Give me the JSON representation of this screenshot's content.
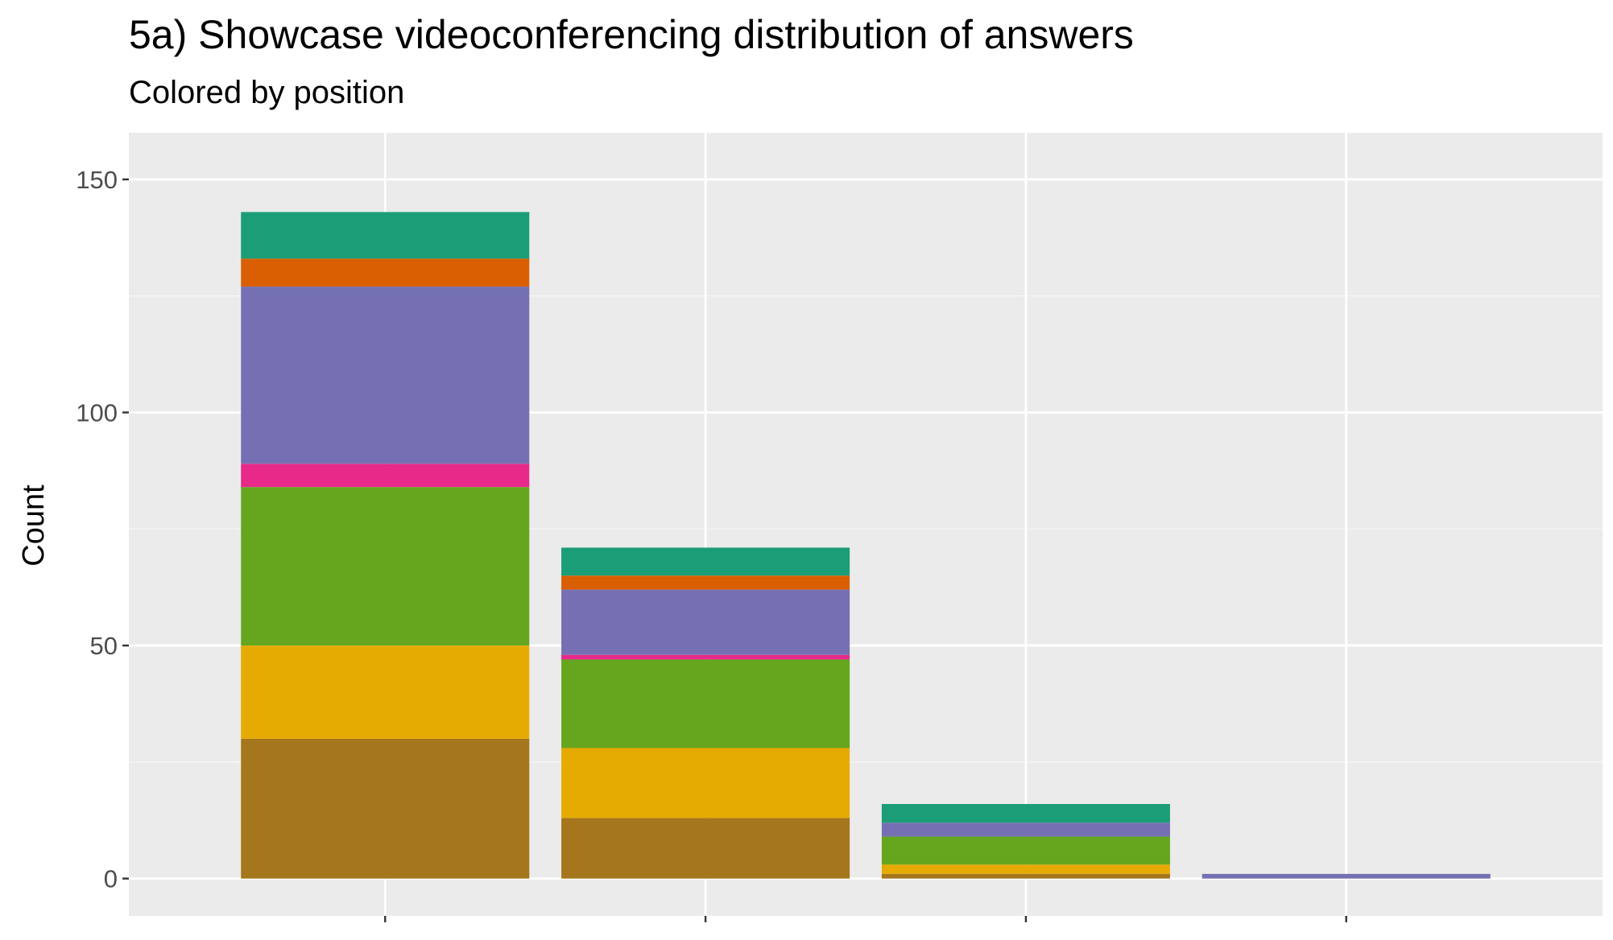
{
  "chart_data": {
    "type": "bar",
    "stacked": true,
    "title": "5a) Showcase videoconferencing distribution of answers",
    "subtitle": "Colored by position",
    "xlabel": "",
    "ylabel": "Count",
    "ylim": [
      -8,
      160
    ],
    "yticks": [
      0,
      50,
      100,
      150
    ],
    "ytick_labels": [
      "0",
      "50",
      "100",
      "150"
    ],
    "grid": true,
    "legend": "none",
    "categories": [
      "",
      "",
      "",
      ""
    ],
    "series": [
      {
        "color": "#A6761D",
        "values": [
          30,
          13,
          1,
          0
        ]
      },
      {
        "color": "#E6AB02",
        "values": [
          20,
          15,
          2,
          0
        ]
      },
      {
        "color": "#66A61E",
        "values": [
          34,
          19,
          6,
          0
        ]
      },
      {
        "color": "#E7298A",
        "values": [
          5,
          1,
          0,
          0
        ]
      },
      {
        "color": "#7570B3",
        "values": [
          38,
          14,
          3,
          1
        ]
      },
      {
        "color": "#D95F02",
        "values": [
          6,
          3,
          0,
          0
        ]
      },
      {
        "color": "#1B9E77",
        "values": [
          10,
          6,
          4,
          0
        ]
      }
    ],
    "colors": {
      "panel_background": "#EBEBEB",
      "grid_major": "#FFFFFF",
      "grid_minor": "#F5F5F5",
      "tick_mark": "#333333"
    }
  }
}
